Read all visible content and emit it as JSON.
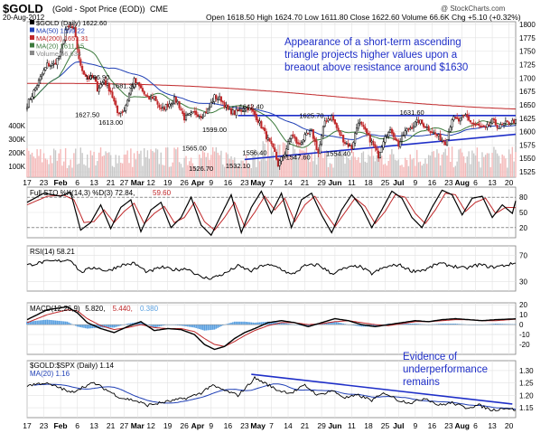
{
  "header": {
    "symbol": "$GOLD",
    "description": "(Gold - Spot Price (EOD))",
    "exchange": "CME",
    "watermark": "@ StockCharts.com",
    "date": "20-Aug-2012",
    "ohlc": "Open 1618.50   High 1624.70   Low 1611.80   Close 1622.60   Volume 66.6K   Chg +5.10 (+0.32%)"
  },
  "chart_data": [
    {
      "type": "candlestick",
      "name": "price",
      "legend": [
        {
          "text": "$GOLD (Daily) 1622.60",
          "color": "#000000"
        },
        {
          "text": "MA(50) 1599.22",
          "color": "#1f3fb5"
        },
        {
          "text": "MA(200) 1651.31",
          "color": "#c0282a"
        },
        {
          "text": "MA(20) 1611.15",
          "color": "#3c7a3c"
        },
        {
          "text": "Volume 66,634",
          "color": "#888888"
        }
      ],
      "ylim": [
        1515,
        1805
      ],
      "y_ticks": [
        1525,
        1550,
        1575,
        1600,
        1625,
        1650,
        1675,
        1700,
        1725,
        1750,
        1775,
        1800
      ],
      "volume_ticks": [
        "400K",
        "300K",
        "200K",
        "100K"
      ],
      "price_key_points": {
        "t": [
          0,
          8,
          12,
          16,
          20,
          23,
          26,
          28,
          32,
          36,
          40,
          42,
          46,
          50,
          54,
          58,
          62,
          64,
          68,
          72,
          76,
          80,
          84,
          88,
          90,
          94,
          100,
          104,
          108,
          112,
          116,
          120,
          124,
          128,
          132,
          136,
          140,
          144,
          148,
          150,
          154,
          158,
          162,
          166,
          170,
          174,
          178,
          182,
          186,
          190,
          194,
          198,
          202,
          206,
          210,
          214,
          218,
          222,
          226,
          230,
          234,
          238,
          242,
          246,
          250,
          252,
          254,
          258,
          262,
          266,
          270,
          274,
          278,
          282,
          286,
          290,
          292
        ],
        "v": [
          1650,
          1700,
          1725,
          1725,
          1745,
          1790,
          1795,
          1790,
          1720,
          1700,
          1700,
          1680,
          1695,
          1675,
          1635,
          1640,
          1680,
          1695,
          1680,
          1660,
          1665,
          1640,
          1650,
          1660,
          1655,
          1625,
          1635,
          1630,
          1640,
          1665,
          1660,
          1640,
          1635,
          1640,
          1645,
          1632,
          1610,
          1585,
          1560,
          1538,
          1560,
          1595,
          1575,
          1590,
          1600,
          1560,
          1620,
          1628,
          1600,
          1580,
          1570,
          1620,
          1600,
          1580,
          1555,
          1595,
          1600,
          1575,
          1600,
          1610,
          1620,
          1610,
          1600,
          1590,
          1580,
          1600,
          1625,
          1620,
          1630,
          1615,
          1610,
          1605,
          1620,
          1608,
          1615,
          1618,
          1622
        ]
      },
      "price_labels": [
        {
          "t": 42,
          "v": 1696.9,
          "text": "1696.90"
        },
        {
          "t": 58,
          "v": 1681.3,
          "text": "1681.30"
        },
        {
          "t": 36,
          "v": 1627.5,
          "text": "1627.50"
        },
        {
          "t": 50,
          "v": 1613.0,
          "text": "1613.00"
        },
        {
          "t": 112,
          "v": 1599.0,
          "text": "1599.00"
        },
        {
          "t": 100,
          "v": 1565.0,
          "text": "1565.00"
        },
        {
          "t": 134,
          "v": 1642.4,
          "text": "1642.40"
        },
        {
          "t": 170,
          "v": 1625.7,
          "text": "1625.70"
        },
        {
          "t": 230,
          "v": 1631.6,
          "text": "1631.60"
        },
        {
          "t": 136,
          "v": 1556.4,
          "text": "1556.40"
        },
        {
          "t": 162,
          "v": 1547.6,
          "text": "1547.60"
        },
        {
          "t": 186,
          "v": 1554.4,
          "text": "1554.40"
        },
        {
          "t": 104,
          "v": 1526.7,
          "text": "1526.70"
        },
        {
          "t": 126,
          "v": 1532.1,
          "text": "1532.10"
        }
      ],
      "annotation": "Appearance of a short-term ascending triangle projects higher values upon a breaout above resistance around $1630",
      "resistance": 1630,
      "support_line": [
        [
          130,
          1548
        ],
        [
          292,
          1595
        ]
      ]
    },
    {
      "type": "line",
      "name": "full-sto",
      "legend": [
        {
          "text": "Full STO %K(14,3) %D(3) 72.84,",
          "color": "#000000"
        },
        {
          "text": "59.60",
          "color": "#c0282a"
        }
      ],
      "ylim": [
        0,
        100
      ],
      "y_ticks": [
        20,
        50,
        80
      ],
      "k_key_points": {
        "t": [
          0,
          10,
          20,
          26,
          32,
          38,
          44,
          50,
          56,
          62,
          68,
          74,
          80,
          86,
          92,
          98,
          104,
          110,
          116,
          122,
          128,
          134,
          140,
          146,
          152,
          158,
          164,
          170,
          176,
          182,
          188,
          194,
          200,
          206,
          212,
          218,
          224,
          230,
          236,
          242,
          248,
          254,
          260,
          266,
          272,
          278,
          284,
          290,
          292
        ],
        "v": [
          70,
          88,
          82,
          90,
          15,
          30,
          65,
          18,
          60,
          75,
          12,
          55,
          70,
          20,
          40,
          80,
          25,
          5,
          45,
          85,
          10,
          60,
          92,
          48,
          88,
          20,
          75,
          88,
          45,
          10,
          55,
          85,
          60,
          20,
          55,
          92,
          78,
          40,
          20,
          60,
          94,
          85,
          45,
          78,
          82,
          40,
          65,
          48,
          72.84
        ]
      },
      "d_key_points": {
        "t": [
          0,
          12,
          22,
          28,
          34,
          40,
          46,
          52,
          58,
          64,
          70,
          76,
          82,
          88,
          94,
          100,
          106,
          112,
          118,
          124,
          130,
          136,
          142,
          148,
          154,
          160,
          166,
          172,
          178,
          184,
          190,
          196,
          202,
          208,
          214,
          220,
          226,
          232,
          238,
          244,
          250,
          256,
          262,
          268,
          274,
          280,
          286,
          292
        ],
        "v": [
          65,
          82,
          84,
          75,
          30,
          32,
          55,
          30,
          52,
          68,
          28,
          48,
          62,
          30,
          40,
          70,
          32,
          15,
          40,
          70,
          22,
          50,
          82,
          55,
          78,
          32,
          65,
          82,
          50,
          22,
          50,
          78,
          62,
          28,
          52,
          85,
          80,
          48,
          28,
          55,
          88,
          85,
          52,
          70,
          78,
          48,
          60,
          59.6
        ]
      }
    },
    {
      "type": "line",
      "name": "rsi",
      "legend": [
        {
          "text": "RSI(14) 58.21",
          "color": "#000000"
        }
      ],
      "ylim": [
        15,
        85
      ],
      "y_ticks": [
        30,
        70
      ],
      "key_points": {
        "t": [
          0,
          10,
          20,
          26,
          32,
          40,
          48,
          56,
          64,
          72,
          80,
          88,
          96,
          104,
          110,
          118,
          126,
          134,
          142,
          150,
          158,
          166,
          174,
          182,
          190,
          198,
          206,
          214,
          222,
          230,
          238,
          246,
          254,
          262,
          270,
          278,
          286,
          292
        ],
        "v": [
          55,
          60,
          62,
          64,
          44,
          52,
          46,
          55,
          58,
          44,
          52,
          48,
          50,
          36,
          35,
          42,
          54,
          46,
          56,
          52,
          40,
          54,
          56,
          42,
          50,
          54,
          42,
          52,
          56,
          46,
          48,
          58,
          54,
          50,
          56,
          52,
          55,
          58.21
        ]
      }
    },
    {
      "type": "line",
      "name": "macd",
      "legend": [
        {
          "text": "MACD(12,26,9)",
          "color": "#000000"
        },
        {
          "text": "5.820,",
          "color": "#000000"
        },
        {
          "text": "5.440,",
          "color": "#c0282a"
        },
        {
          "text": "0.380",
          "color": "#5aa0e0"
        }
      ],
      "ylim": [
        -30,
        22
      ],
      "y_ticks": [
        -20,
        -10,
        0,
        10,
        20
      ],
      "macd_key_points": {
        "t": [
          0,
          12,
          24,
          30,
          36,
          44,
          52,
          60,
          68,
          76,
          84,
          92,
          100,
          106,
          112,
          118,
          124,
          130,
          136,
          144,
          152,
          160,
          168,
          176,
          184,
          192,
          200,
          208,
          216,
          224,
          232,
          240,
          248,
          256,
          264,
          272,
          280,
          292
        ],
        "macd": [
          5,
          15,
          18,
          12,
          2,
          -4,
          -8,
          -2,
          3,
          -6,
          -4,
          -5,
          -10,
          -20,
          -25,
          -22,
          -14,
          -8,
          -4,
          2,
          4,
          2,
          -2,
          2,
          6,
          4,
          0,
          -2,
          0,
          2,
          4,
          3,
          5,
          6,
          5,
          4,
          5,
          5.82
        ],
        "signal": [
          2,
          10,
          15,
          14,
          6,
          -1,
          -5,
          -3,
          0,
          -3,
          -4,
          -4,
          -7,
          -14,
          -20,
          -22,
          -17,
          -11,
          -6,
          -1,
          2,
          2,
          0,
          1,
          3,
          4,
          2,
          0,
          -1,
          1,
          3,
          3,
          4,
          5,
          5,
          4,
          4,
          5.44
        ]
      }
    },
    {
      "type": "line",
      "name": "ratio",
      "legend": [
        {
          "text": "$GOLD:$SPX (Daily) 1.14",
          "color": "#000000"
        },
        {
          "text": "MA(20) 1.16",
          "color": "#1f3fb5"
        }
      ],
      "annotation": "Evidence of underperformance remains",
      "ylim": [
        1.11,
        1.34
      ],
      "y_ticks": [
        1.15,
        1.2,
        1.25,
        1.3
      ],
      "key_points": {
        "t": [
          0,
          10,
          20,
          26,
          32,
          40,
          48,
          56,
          64,
          72,
          80,
          88,
          96,
          104,
          110,
          118,
          126,
          132,
          136,
          142,
          150,
          158,
          166,
          174,
          182,
          190,
          198,
          206,
          214,
          222,
          230,
          238,
          246,
          254,
          262,
          270,
          278,
          286,
          292
        ],
        "v": [
          1.24,
          1.25,
          1.23,
          1.21,
          1.23,
          1.25,
          1.22,
          1.19,
          1.18,
          1.16,
          1.17,
          1.18,
          1.19,
          1.21,
          1.24,
          1.22,
          1.2,
          1.24,
          1.27,
          1.25,
          1.22,
          1.21,
          1.24,
          1.2,
          1.22,
          1.19,
          1.2,
          1.18,
          1.21,
          1.18,
          1.17,
          1.19,
          1.16,
          1.17,
          1.15,
          1.16,
          1.14,
          1.15,
          1.14
        ]
      },
      "trend_line": [
        [
          134,
          1.285
        ],
        [
          290,
          1.165
        ]
      ]
    }
  ],
  "x_axis": {
    "labels": [
      "17",
      "23",
      "Feb",
      "6",
      "13",
      "21",
      "27",
      "Mar",
      "12",
      "19",
      "26",
      "Apr",
      "9",
      "16",
      "23",
      "May",
      "7",
      "14",
      "21",
      "29",
      "Jun",
      "11",
      "18",
      "25",
      "Jul",
      "9",
      "16",
      "23",
      "Aug",
      "6",
      "13",
      "20"
    ],
    "t": [
      0,
      10,
      20,
      30,
      40,
      50,
      58,
      66,
      74,
      84,
      94,
      102,
      110,
      120,
      130,
      138,
      146,
      156,
      166,
      176,
      184,
      194,
      204,
      214,
      222,
      232,
      242,
      252,
      260,
      268,
      278,
      288
    ]
  }
}
